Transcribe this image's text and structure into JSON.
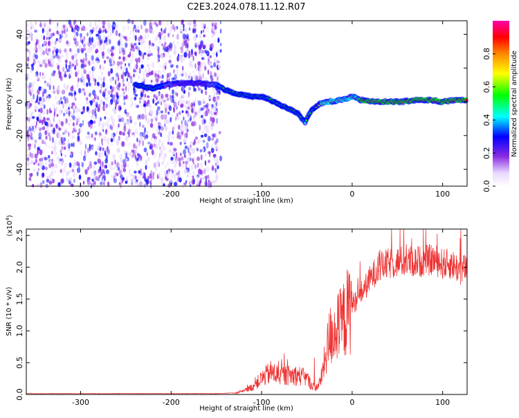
{
  "title": "C2E3.2024.078.11.12.R07",
  "chart_data": [
    {
      "type": "heatmap",
      "xlabel": "Height of straight line (km)",
      "ylabel": "Frequency (Hz)",
      "xlim": [
        -360,
        127
      ],
      "ylim": [
        -50,
        48
      ],
      "xticks": [
        -300,
        -200,
        -100,
        0,
        100
      ],
      "yticks": [
        -40,
        -20,
        0,
        20,
        40
      ],
      "xtick_labels": [
        "-300",
        "-200",
        "-100",
        "0",
        "100"
      ],
      "ytick_labels": [
        "-40",
        "-20",
        "0",
        "20",
        "40"
      ],
      "colorbar": {
        "label": "Normalized spectral amplitude",
        "range": [
          0,
          1
        ],
        "ticks": [
          0.0,
          0.2,
          0.4,
          0.6,
          0.8
        ],
        "tick_labels": [
          "0.0",
          "0.2",
          "0.4",
          "0.6",
          "0.8"
        ]
      },
      "noise_region_x": [
        -360,
        -145
      ],
      "signal_track": [
        {
          "x": -240,
          "y": 10,
          "amp": 0.45
        },
        {
          "x": -230,
          "y": 9,
          "amp": 0.5
        },
        {
          "x": -220,
          "y": 8,
          "amp": 0.45
        },
        {
          "x": -205,
          "y": 10,
          "amp": 0.35
        },
        {
          "x": -190,
          "y": 11,
          "amp": 0.25
        },
        {
          "x": -170,
          "y": 11,
          "amp": 0.25
        },
        {
          "x": -150,
          "y": 10,
          "amp": 0.35
        },
        {
          "x": -140,
          "y": 7,
          "amp": 0.45
        },
        {
          "x": -130,
          "y": 5,
          "amp": 0.5
        },
        {
          "x": -120,
          "y": 4,
          "amp": 0.55
        },
        {
          "x": -110,
          "y": 3,
          "amp": 0.55
        },
        {
          "x": -100,
          "y": 3,
          "amp": 0.5
        },
        {
          "x": -90,
          "y": 1,
          "amp": 0.5
        },
        {
          "x": -80,
          "y": -2,
          "amp": 0.5
        },
        {
          "x": -70,
          "y": -4,
          "amp": 0.5
        },
        {
          "x": -60,
          "y": -7,
          "amp": 0.45
        },
        {
          "x": -52,
          "y": -12,
          "amp": 0.4
        },
        {
          "x": -45,
          "y": -5,
          "amp": 0.5
        },
        {
          "x": -35,
          "y": -1,
          "amp": 0.6
        },
        {
          "x": -25,
          "y": 0,
          "amp": 0.65
        },
        {
          "x": -15,
          "y": 1,
          "amp": 0.7
        },
        {
          "x": -5,
          "y": 2,
          "amp": 0.75
        },
        {
          "x": 0,
          "y": 3,
          "amp": 0.8
        },
        {
          "x": 10,
          "y": 1,
          "amp": 0.85
        },
        {
          "x": 25,
          "y": 0,
          "amp": 0.9
        },
        {
          "x": 40,
          "y": 0,
          "amp": 0.9
        },
        {
          "x": 55,
          "y": 0,
          "amp": 0.9
        },
        {
          "x": 70,
          "y": 1,
          "amp": 0.9
        },
        {
          "x": 85,
          "y": 1,
          "amp": 0.9
        },
        {
          "x": 100,
          "y": 0,
          "amp": 0.88
        },
        {
          "x": 115,
          "y": 1,
          "amp": 0.85
        },
        {
          "x": 127,
          "y": 1,
          "amp": 0.85
        }
      ]
    },
    {
      "type": "line",
      "xlabel": "Height of straight line (km)",
      "ylabel": "SNR (10 * v/v)",
      "yscale_label": "(x10",
      "yscale_exp": "4",
      "yscale_close": ")",
      "xlim": [
        -360,
        127
      ],
      "ylim": [
        0,
        2.6
      ],
      "xticks": [
        -300,
        -200,
        -100,
        0,
        100
      ],
      "yticks": [
        0.0,
        0.5,
        1.0,
        1.5,
        2.0,
        2.5
      ],
      "xtick_labels": [
        "-300",
        "-200",
        "-100",
        "0",
        "100"
      ],
      "ytick_labels": [
        "0.0",
        "0.5",
        "1.0",
        "1.5",
        "2.0",
        "2.5"
      ],
      "series": [
        {
          "color": "#ee3333",
          "x": [
            -360,
            -300,
            -250,
            -200,
            -150,
            -130,
            -120,
            -110,
            -100,
            -90,
            -80,
            -70,
            -60,
            -50,
            -45,
            -40,
            -35,
            -30,
            -25,
            -20,
            -15,
            -10,
            -5,
            0,
            5,
            10,
            15,
            20,
            25,
            30,
            40,
            50,
            60,
            70,
            80,
            90,
            100,
            110,
            120,
            127
          ],
          "y": [
            0.01,
            0.01,
            0.01,
            0.01,
            0.01,
            0.02,
            0.05,
            0.12,
            0.25,
            0.35,
            0.3,
            0.3,
            0.3,
            0.25,
            0.15,
            0.1,
            0.2,
            0.55,
            0.9,
            1.0,
            1.05,
            1.15,
            1.3,
            1.4,
            1.5,
            1.6,
            1.7,
            1.82,
            1.92,
            2.0,
            2.05,
            2.08,
            2.1,
            2.08,
            2.1,
            2.12,
            2.05,
            2.05,
            1.95,
            2.0
          ]
        }
      ]
    }
  ]
}
